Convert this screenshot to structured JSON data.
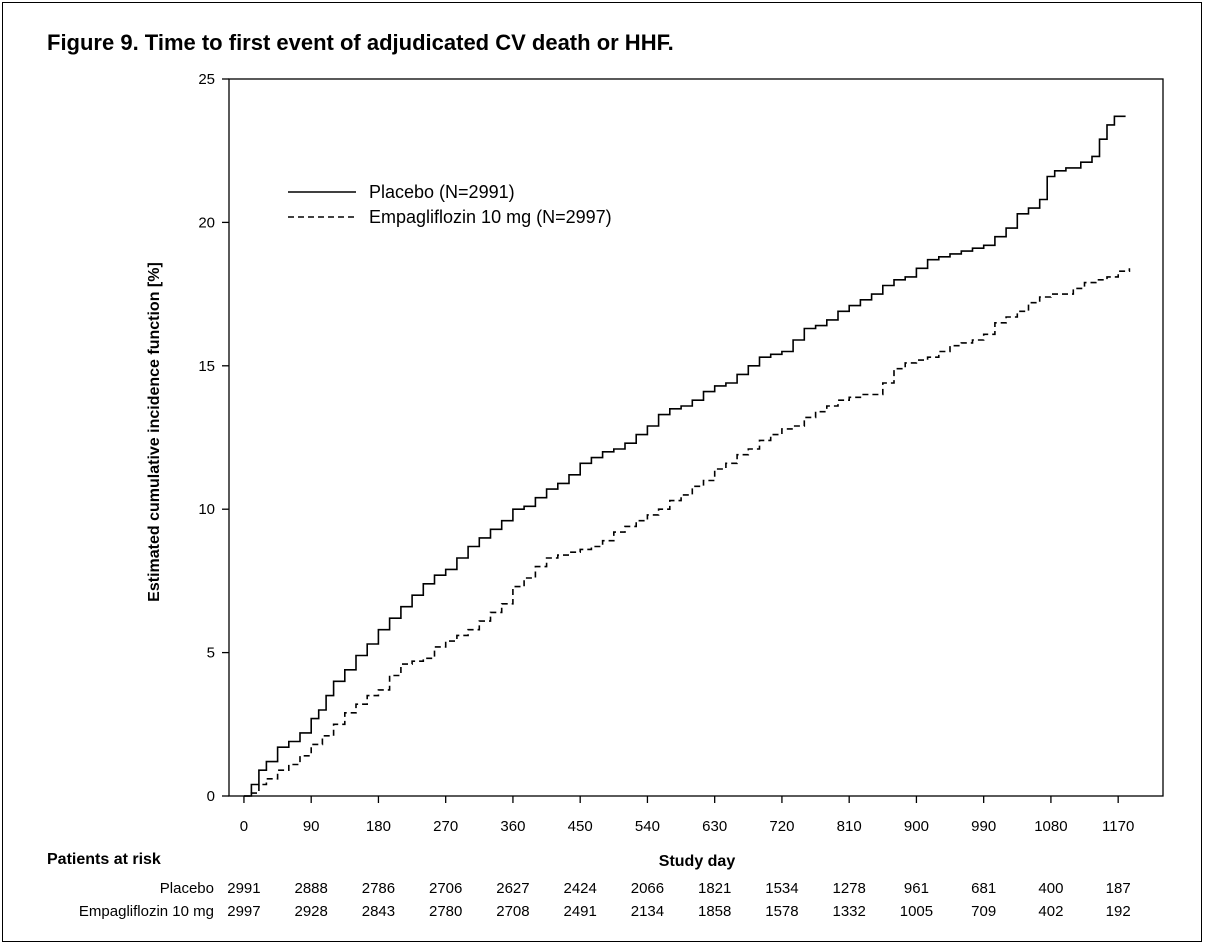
{
  "figure_title": "Figure 9. Time to first event of adjudicated CV death or HHF.",
  "chart_data": {
    "type": "line",
    "title": "Figure 9. Time to first event of adjudicated CV death or HHF.",
    "xlabel": "Study day",
    "ylabel": "Estimated cumulative incidence function [%]",
    "xlim": [
      -20,
      1230
    ],
    "ylim": [
      0,
      25
    ],
    "x_ticks": [
      0,
      90,
      180,
      270,
      360,
      450,
      540,
      630,
      720,
      810,
      900,
      990,
      1080,
      1170
    ],
    "y_ticks": [
      0,
      5,
      10,
      15,
      20,
      25
    ],
    "grid": false,
    "legend_position": "top-left",
    "series": [
      {
        "name": "Placebo (N=2991)",
        "line_style": "solid",
        "x": [
          0,
          10,
          20,
          30,
          45,
          60,
          75,
          90,
          100,
          110,
          120,
          135,
          150,
          165,
          180,
          195,
          210,
          225,
          240,
          255,
          270,
          285,
          300,
          315,
          330,
          345,
          360,
          375,
          390,
          405,
          420,
          435,
          450,
          465,
          480,
          495,
          510,
          525,
          540,
          555,
          570,
          585,
          600,
          615,
          630,
          645,
          660,
          675,
          690,
          705,
          720,
          735,
          750,
          765,
          780,
          795,
          810,
          825,
          840,
          855,
          870,
          885,
          900,
          915,
          930,
          945,
          960,
          975,
          990,
          1005,
          1020,
          1035,
          1050,
          1065,
          1075,
          1085,
          1100,
          1120,
          1135,
          1145,
          1155,
          1165,
          1180
        ],
        "y": [
          0,
          0.4,
          0.9,
          1.2,
          1.7,
          1.9,
          2.2,
          2.7,
          3.0,
          3.5,
          4.0,
          4.4,
          4.9,
          5.3,
          5.8,
          6.2,
          6.6,
          7.0,
          7.4,
          7.7,
          7.9,
          8.3,
          8.7,
          9.0,
          9.3,
          9.6,
          10.0,
          10.1,
          10.4,
          10.7,
          10.9,
          11.2,
          11.6,
          11.8,
          12.0,
          12.1,
          12.3,
          12.6,
          12.9,
          13.3,
          13.5,
          13.6,
          13.8,
          14.1,
          14.3,
          14.4,
          14.7,
          15.0,
          15.3,
          15.4,
          15.5,
          15.9,
          16.3,
          16.4,
          16.6,
          16.9,
          17.1,
          17.3,
          17.5,
          17.8,
          18.0,
          18.1,
          18.4,
          18.7,
          18.8,
          18.9,
          19.0,
          19.1,
          19.2,
          19.5,
          19.8,
          20.3,
          20.5,
          20.8,
          21.6,
          21.8,
          21.9,
          22.1,
          22.3,
          22.9,
          23.4,
          23.7,
          23.7
        ]
      },
      {
        "name": "Empagliflozin 10 mg (N=2997)",
        "line_style": "dashed",
        "x": [
          0,
          10,
          20,
          30,
          45,
          60,
          75,
          90,
          105,
          120,
          135,
          150,
          165,
          180,
          195,
          210,
          225,
          240,
          255,
          270,
          285,
          300,
          315,
          330,
          345,
          360,
          375,
          390,
          405,
          420,
          435,
          450,
          465,
          480,
          495,
          510,
          525,
          540,
          555,
          570,
          585,
          600,
          615,
          630,
          645,
          660,
          675,
          690,
          705,
          720,
          735,
          750,
          765,
          780,
          795,
          810,
          825,
          840,
          855,
          870,
          885,
          900,
          915,
          930,
          945,
          960,
          975,
          990,
          1005,
          1020,
          1035,
          1050,
          1065,
          1080,
          1095,
          1110,
          1125,
          1140,
          1155,
          1170,
          1185
        ],
        "y": [
          0,
          0.1,
          0.4,
          0.6,
          0.9,
          1.1,
          1.4,
          1.8,
          2.1,
          2.5,
          2.9,
          3.2,
          3.5,
          3.7,
          4.2,
          4.6,
          4.7,
          4.8,
          5.2,
          5.4,
          5.6,
          5.8,
          6.1,
          6.4,
          6.7,
          7.3,
          7.6,
          8.0,
          8.3,
          8.4,
          8.5,
          8.6,
          8.7,
          8.9,
          9.2,
          9.4,
          9.6,
          9.8,
          10.0,
          10.3,
          10.5,
          10.8,
          11.0,
          11.4,
          11.6,
          11.9,
          12.1,
          12.4,
          12.6,
          12.8,
          12.9,
          13.2,
          13.4,
          13.6,
          13.8,
          13.9,
          14.0,
          14.0,
          14.4,
          14.9,
          15.1,
          15.2,
          15.3,
          15.5,
          15.7,
          15.8,
          15.9,
          16.1,
          16.5,
          16.7,
          16.9,
          17.2,
          17.4,
          17.5,
          17.5,
          17.7,
          17.9,
          18.0,
          18.1,
          18.3,
          18.4
        ]
      }
    ]
  },
  "risk_table": {
    "header": "Patients at risk",
    "columns": [
      0,
      90,
      180,
      270,
      360,
      450,
      540,
      630,
      720,
      810,
      900,
      990,
      1080,
      1170
    ],
    "rows": [
      {
        "label": "Placebo",
        "values": [
          "2991",
          "2888",
          "2786",
          "2706",
          "2627",
          "2424",
          "2066",
          "1821",
          "1534",
          "1278",
          "961",
          "681",
          "400",
          "187"
        ]
      },
      {
        "label": "Empagliflozin 10 mg",
        "values": [
          "2997",
          "2928",
          "2843",
          "2780",
          "2708",
          "2491",
          "2134",
          "1858",
          "1578",
          "1332",
          "1005",
          "709",
          "402",
          "192"
        ]
      }
    ]
  }
}
